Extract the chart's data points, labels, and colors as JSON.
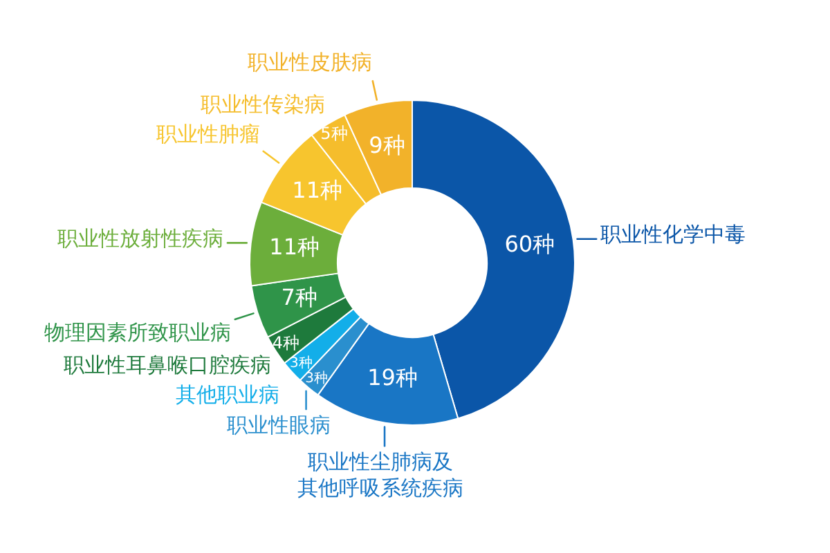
{
  "chart_data": {
    "type": "donut",
    "categories": [
      "职业性化学中毒",
      "职业性尘肺病及其他呼吸系统疾病",
      "职业性眼病",
      "其他职业病",
      "职业性耳鼻喉口腔疾病",
      "物理因素所致职业病",
      "职业性放射性疾病",
      "职业性肿瘤",
      "职业性传染病",
      "职业性皮肤病"
    ],
    "values": [
      60,
      19,
      3,
      3,
      4,
      7,
      11,
      11,
      5,
      9
    ],
    "value_labels": [
      "60种",
      "19种",
      "3种",
      "3种",
      "4种",
      "7种",
      "11种",
      "11种",
      "5种",
      "9种"
    ],
    "colors": [
      "#0b56a8",
      "#1976c5",
      "#2a8fce",
      "#13aee9",
      "#1e7a3c",
      "#2f9449",
      "#6cae3b",
      "#f7c52e",
      "#f5bd2c",
      "#f2b22a"
    ],
    "legend": false
  }
}
